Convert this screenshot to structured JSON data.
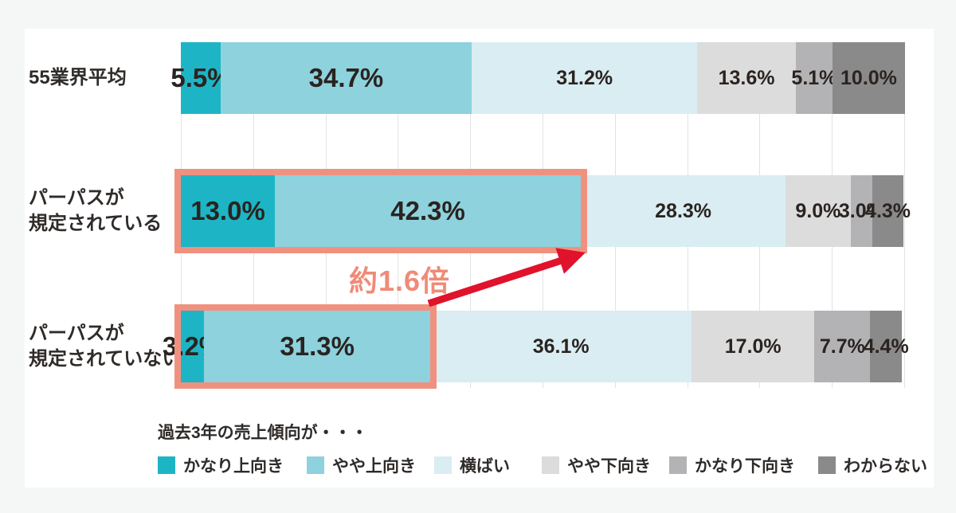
{
  "chart_data": {
    "type": "bar",
    "orientation": "horizontal",
    "stacked": true,
    "xlim": [
      0,
      100
    ],
    "grid": "vertical gridlines every 10%",
    "legend_position": "bottom",
    "legend_title": "過去3年の売上傾向が・・・",
    "categories": [
      "55業界平均",
      "パーパスが規定されている",
      "パーパスが規定されていない"
    ],
    "category_label_lines": [
      [
        "55業界平均"
      ],
      [
        "パーパスが",
        "規定されている"
      ],
      [
        "パーパスが",
        "規定されていない"
      ]
    ],
    "series": [
      {
        "name": "かなり上向き",
        "color": "#1db5c5",
        "values": [
          5.5,
          13.0,
          3.2
        ]
      },
      {
        "name": "やや上向き",
        "color": "#8dd2dd",
        "values": [
          34.7,
          42.3,
          31.3
        ]
      },
      {
        "name": "横ばい",
        "color": "#d9edf2",
        "values": [
          31.2,
          28.3,
          36.1
        ]
      },
      {
        "name": "やや下向き",
        "color": "#dcdcdc",
        "values": [
          13.6,
          9.0,
          17.0
        ]
      },
      {
        "name": "かなり下向き",
        "color": "#b3b3b5",
        "values": [
          5.1,
          3.0,
          7.7
        ]
      },
      {
        "name": "わからない",
        "color": "#8a8a8a",
        "values": [
          10.0,
          4.3,
          4.4
        ]
      }
    ],
    "value_suffix": "%",
    "annotation": {
      "text": "約1.6倍",
      "color": "#ef8b78"
    },
    "highlight": {
      "rows": [
        1,
        2
      ],
      "segments": [
        0,
        1
      ],
      "border_color": "#f0917f",
      "arrow_color": "#e0122c"
    },
    "colors": {
      "background": "#f5f6f6",
      "panel": "#ffffff",
      "gridline": "#e0e3e5",
      "text": "#2f2b29"
    }
  }
}
